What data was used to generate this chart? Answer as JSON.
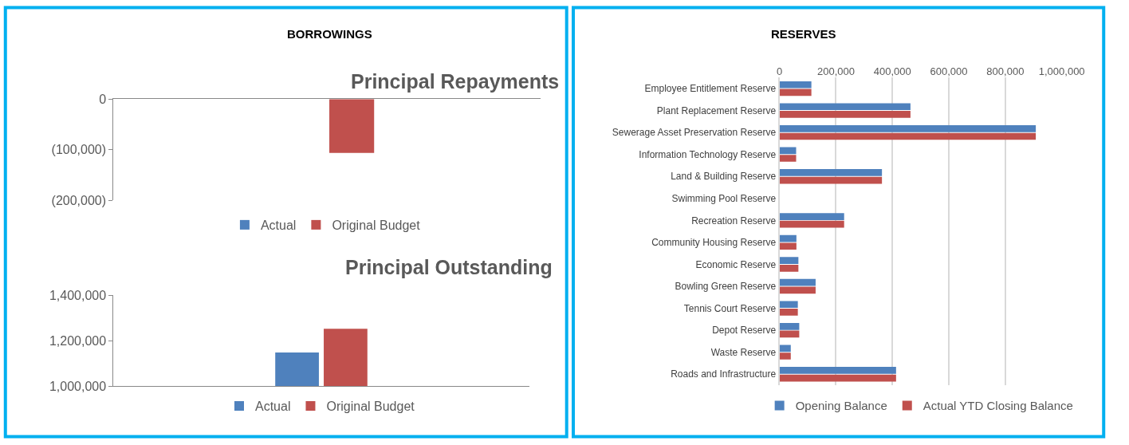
{
  "chart_data": [
    {
      "type": "bar",
      "title": "Principal Repayments",
      "annotations": [
        "BORROWINGS"
      ],
      "categories": [
        null
      ],
      "series": [
        {
          "name": "Actual",
          "color": "#4f81bd",
          "values": [
            0
          ]
        },
        {
          "name": "Original Budget",
          "color": "#c0504d",
          "values": [
            -106000
          ]
        }
      ],
      "ylim": [
        -200000,
        0
      ],
      "yticks": [
        {
          "value": 0,
          "label": "0"
        },
        {
          "value": -100000,
          "label": "(100,000)"
        },
        {
          "value": -200000,
          "label": "(200,000)"
        }
      ],
      "grid": false,
      "legend": "bottom"
    },
    {
      "type": "bar",
      "title": "Principal Outstanding",
      "categories": [
        null
      ],
      "series": [
        {
          "name": "Actual",
          "color": "#4f81bd",
          "values": [
            1148000
          ]
        },
        {
          "name": "Original Budget",
          "color": "#c0504d",
          "values": [
            1253000
          ]
        }
      ],
      "ylim": [
        1000000,
        1400000
      ],
      "yticks": [
        {
          "value": 1000000,
          "label": "1,000,000"
        },
        {
          "value": 1200000,
          "label": "1,200,000"
        },
        {
          "value": 1400000,
          "label": "1,400,000"
        }
      ],
      "grid": false,
      "legend": "bottom"
    },
    {
      "type": "bar",
      "title": "RESERVES",
      "orientation": "horizontal",
      "categories": [
        "Employee Entitlement Reserve",
        "Plant Replacement Reserve",
        "Sewerage Asset Preservation Reserve",
        "Information Technology Reserve",
        "Land & Building Reserve",
        "Swimming Pool Reserve",
        "Recreation Reserve",
        "Community Housing Reserve",
        "Economic Reserve",
        "Bowling Green Reserve",
        "Tennis Court Reserve",
        "Depot Reserve",
        "Waste Reserve",
        "Roads and Infrastructure"
      ],
      "series": [
        {
          "name": "Opening Balance",
          "color": "#4f81bd",
          "values": [
            113000,
            464000,
            908000,
            59000,
            363000,
            0,
            229000,
            60000,
            67000,
            128000,
            65000,
            70000,
            40000,
            413000
          ]
        },
        {
          "name": "Actual YTD Closing Balance",
          "color": "#c0504d",
          "values": [
            113000,
            464000,
            908000,
            59000,
            363000,
            0,
            229000,
            60000,
            67000,
            128000,
            65000,
            70000,
            40000,
            413000
          ]
        }
      ],
      "xlim": [
        0,
        1000000
      ],
      "xticks": [
        0,
        {
          "value": 200000,
          "label": "200,000"
        },
        {
          "value": 400000,
          "label": "400,000"
        },
        {
          "value": 600000,
          "label": "600,000"
        },
        {
          "value": 800000,
          "label": "800,000"
        },
        {
          "value": 1000000,
          "label": "1,000,000"
        }
      ],
      "grid": "x",
      "legend": "bottom"
    }
  ]
}
